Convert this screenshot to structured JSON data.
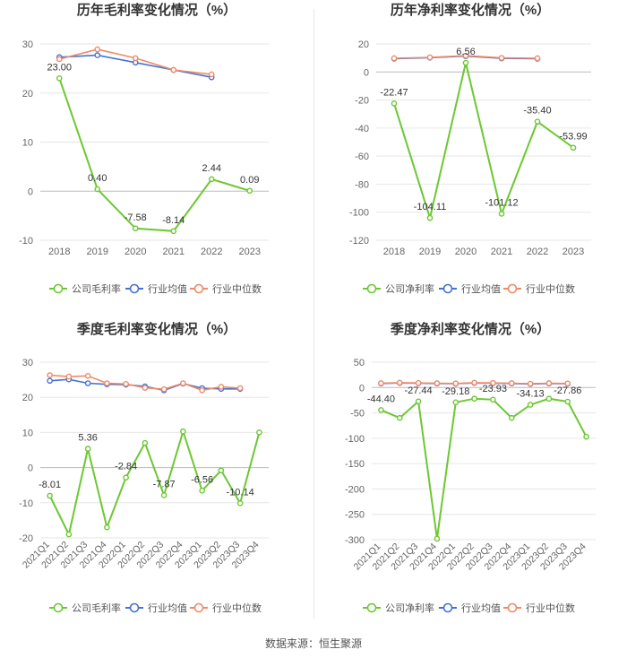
{
  "footer": "数据来源：恒生聚源",
  "colors": {
    "company": "#6cc832",
    "industry_avg": "#4472d4",
    "industry_median": "#ee8a66",
    "grid": "#e6e6e6",
    "axis_text": "#666666",
    "title": "#333333"
  },
  "chart_data": [
    {
      "type": "line",
      "title": "历年毛利率变化情况（%）",
      "categories": [
        "2018",
        "2019",
        "2020",
        "2021",
        "2022",
        "2023"
      ],
      "ylim": [
        -10,
        30
      ],
      "yticks": [
        -10,
        0,
        10,
        20,
        30
      ],
      "series": [
        {
          "name": "公司毛利率",
          "key": "company",
          "values": [
            23.0,
            0.4,
            -7.58,
            -8.14,
            2.44,
            0.09
          ],
          "labels": [
            "23.00",
            "0.40",
            "-7.58",
            "-8.14",
            "2.44",
            "0.09"
          ]
        },
        {
          "name": "行业均值",
          "key": "industry_avg",
          "values": [
            27.3,
            27.7,
            26.2,
            24.7,
            23.2,
            null
          ]
        },
        {
          "name": "行业中位数",
          "key": "industry_median",
          "values": [
            26.9,
            28.9,
            27.1,
            24.7,
            23.8,
            null
          ]
        }
      ]
    },
    {
      "type": "line",
      "title": "历年净利率变化情况（%）",
      "categories": [
        "2018",
        "2019",
        "2020",
        "2021",
        "2022",
        "2023"
      ],
      "ylim": [
        -120,
        20
      ],
      "yticks": [
        -120,
        -100,
        -80,
        -60,
        -40,
        -20,
        0,
        20
      ],
      "series": [
        {
          "name": "公司净利率",
          "key": "company",
          "values": [
            -22.47,
            -104.11,
            6.56,
            -101.12,
            -35.4,
            -53.99
          ],
          "labels": [
            "-22.47",
            "-104.11",
            "6.56",
            "-101.12",
            "-35.40",
            "-53.99"
          ]
        },
        {
          "name": "行业均值",
          "key": "industry_avg",
          "values": [
            9.5,
            10.2,
            11.3,
            9.7,
            9.5,
            null
          ]
        },
        {
          "name": "行业中位数",
          "key": "industry_median",
          "values": [
            9.8,
            10.4,
            11.6,
            10.0,
            9.8,
            null
          ]
        }
      ]
    },
    {
      "type": "line",
      "title": "季度毛利率变化情况（%）",
      "categories": [
        "2021Q1",
        "2021Q2",
        "2021Q3",
        "2021Q4",
        "2022Q1",
        "2022Q2",
        "2022Q3",
        "2022Q4",
        "2023Q1",
        "2023Q2",
        "2023Q3",
        "2023Q4"
      ],
      "ylim": [
        -20,
        30
      ],
      "yticks": [
        -20,
        -10,
        0,
        10,
        20,
        30
      ],
      "series": [
        {
          "name": "公司毛利率",
          "key": "company",
          "values": [
            -8.01,
            -19.0,
            5.36,
            -17.0,
            -2.84,
            7.0,
            -7.87,
            10.3,
            -6.56,
            -0.8,
            -10.14,
            10.0
          ],
          "labels": [
            "-8.01",
            "",
            "5.36",
            "",
            "-2.84",
            "",
            "-7.87",
            "",
            "-6.56",
            "",
            "-10.14",
            ""
          ]
        },
        {
          "name": "行业均值",
          "key": "industry_avg",
          "values": [
            24.7,
            25.1,
            24.0,
            23.7,
            23.6,
            23.1,
            22.0,
            23.9,
            22.6,
            22.4,
            22.4,
            null
          ]
        },
        {
          "name": "行业中位数",
          "key": "industry_median",
          "values": [
            26.3,
            25.9,
            26.1,
            24.0,
            23.8,
            22.7,
            22.3,
            24.0,
            22.0,
            23.0,
            22.6,
            null
          ]
        }
      ]
    },
    {
      "type": "line",
      "title": "季度净利率变化情况（%）",
      "categories": [
        "2021Q1",
        "2021Q2",
        "2021Q3",
        "2021Q4",
        "2022Q1",
        "2022Q2",
        "2022Q3",
        "2022Q4",
        "2023Q1",
        "2023Q2",
        "2023Q3",
        "2023Q4"
      ],
      "ylim": [
        -300,
        50
      ],
      "yticks": [
        -300,
        -250,
        -200,
        -150,
        -100,
        -50,
        0,
        50
      ],
      "series": [
        {
          "name": "公司净利率",
          "key": "company",
          "values": [
            -44.4,
            -60.0,
            -27.44,
            -298.0,
            -29.18,
            -22.0,
            -23.93,
            -60.0,
            -34.13,
            -22.0,
            -27.86,
            -97.0
          ],
          "labels": [
            "-44.40",
            "",
            "-27.44",
            "",
            "-29.18",
            "",
            "-23.93",
            "",
            "-34.13",
            "",
            "-27.86",
            ""
          ]
        },
        {
          "name": "行业均值",
          "key": "industry_avg",
          "values": [
            8.0,
            9.0,
            8.5,
            8.0,
            7.5,
            9.0,
            8.5,
            8.0,
            7.0,
            8.0,
            7.5,
            null
          ]
        },
        {
          "name": "行业中位数",
          "key": "industry_median",
          "values": [
            8.5,
            9.5,
            9.0,
            8.5,
            8.0,
            9.5,
            9.0,
            8.5,
            7.5,
            8.5,
            8.0,
            null
          ]
        }
      ]
    }
  ]
}
